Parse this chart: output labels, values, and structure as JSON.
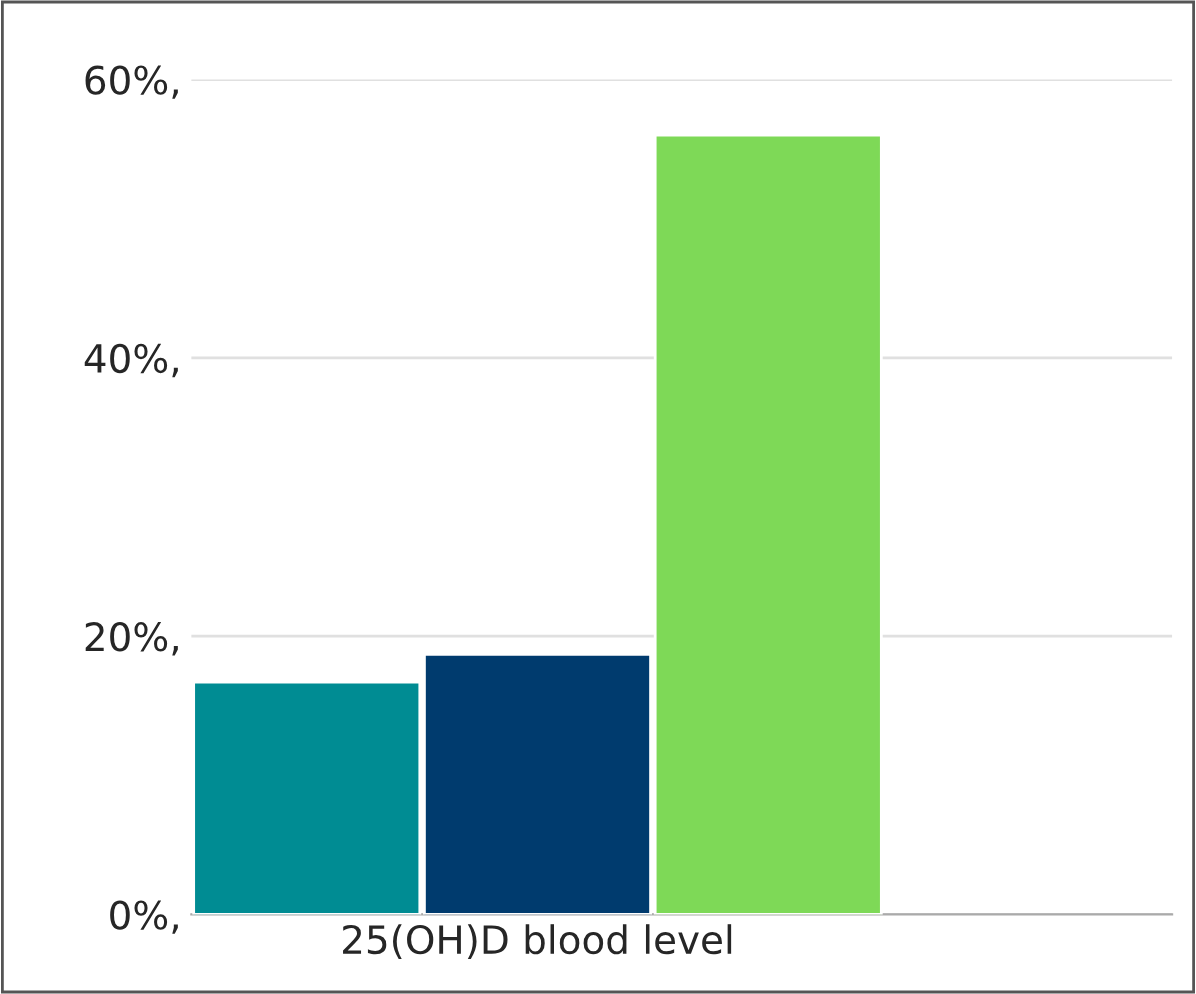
{
  "chart_data": {
    "type": "bar",
    "categories": [
      null,
      "25(OH)D blood level",
      null
    ],
    "values": [
      16.7,
      18.7,
      56.0
    ],
    "colors": [
      "#008c93",
      "#003b6e",
      "#7ed957"
    ],
    "ylim": [
      0,
      60
    ],
    "yticks": [
      {
        "value": 0,
        "label": "0%,"
      },
      {
        "value": 20,
        "label": "20%,"
      },
      {
        "value": 40,
        "label": "40%,"
      },
      {
        "value": 60,
        "label": "60%,"
      }
    ],
    "grid": "y"
  }
}
